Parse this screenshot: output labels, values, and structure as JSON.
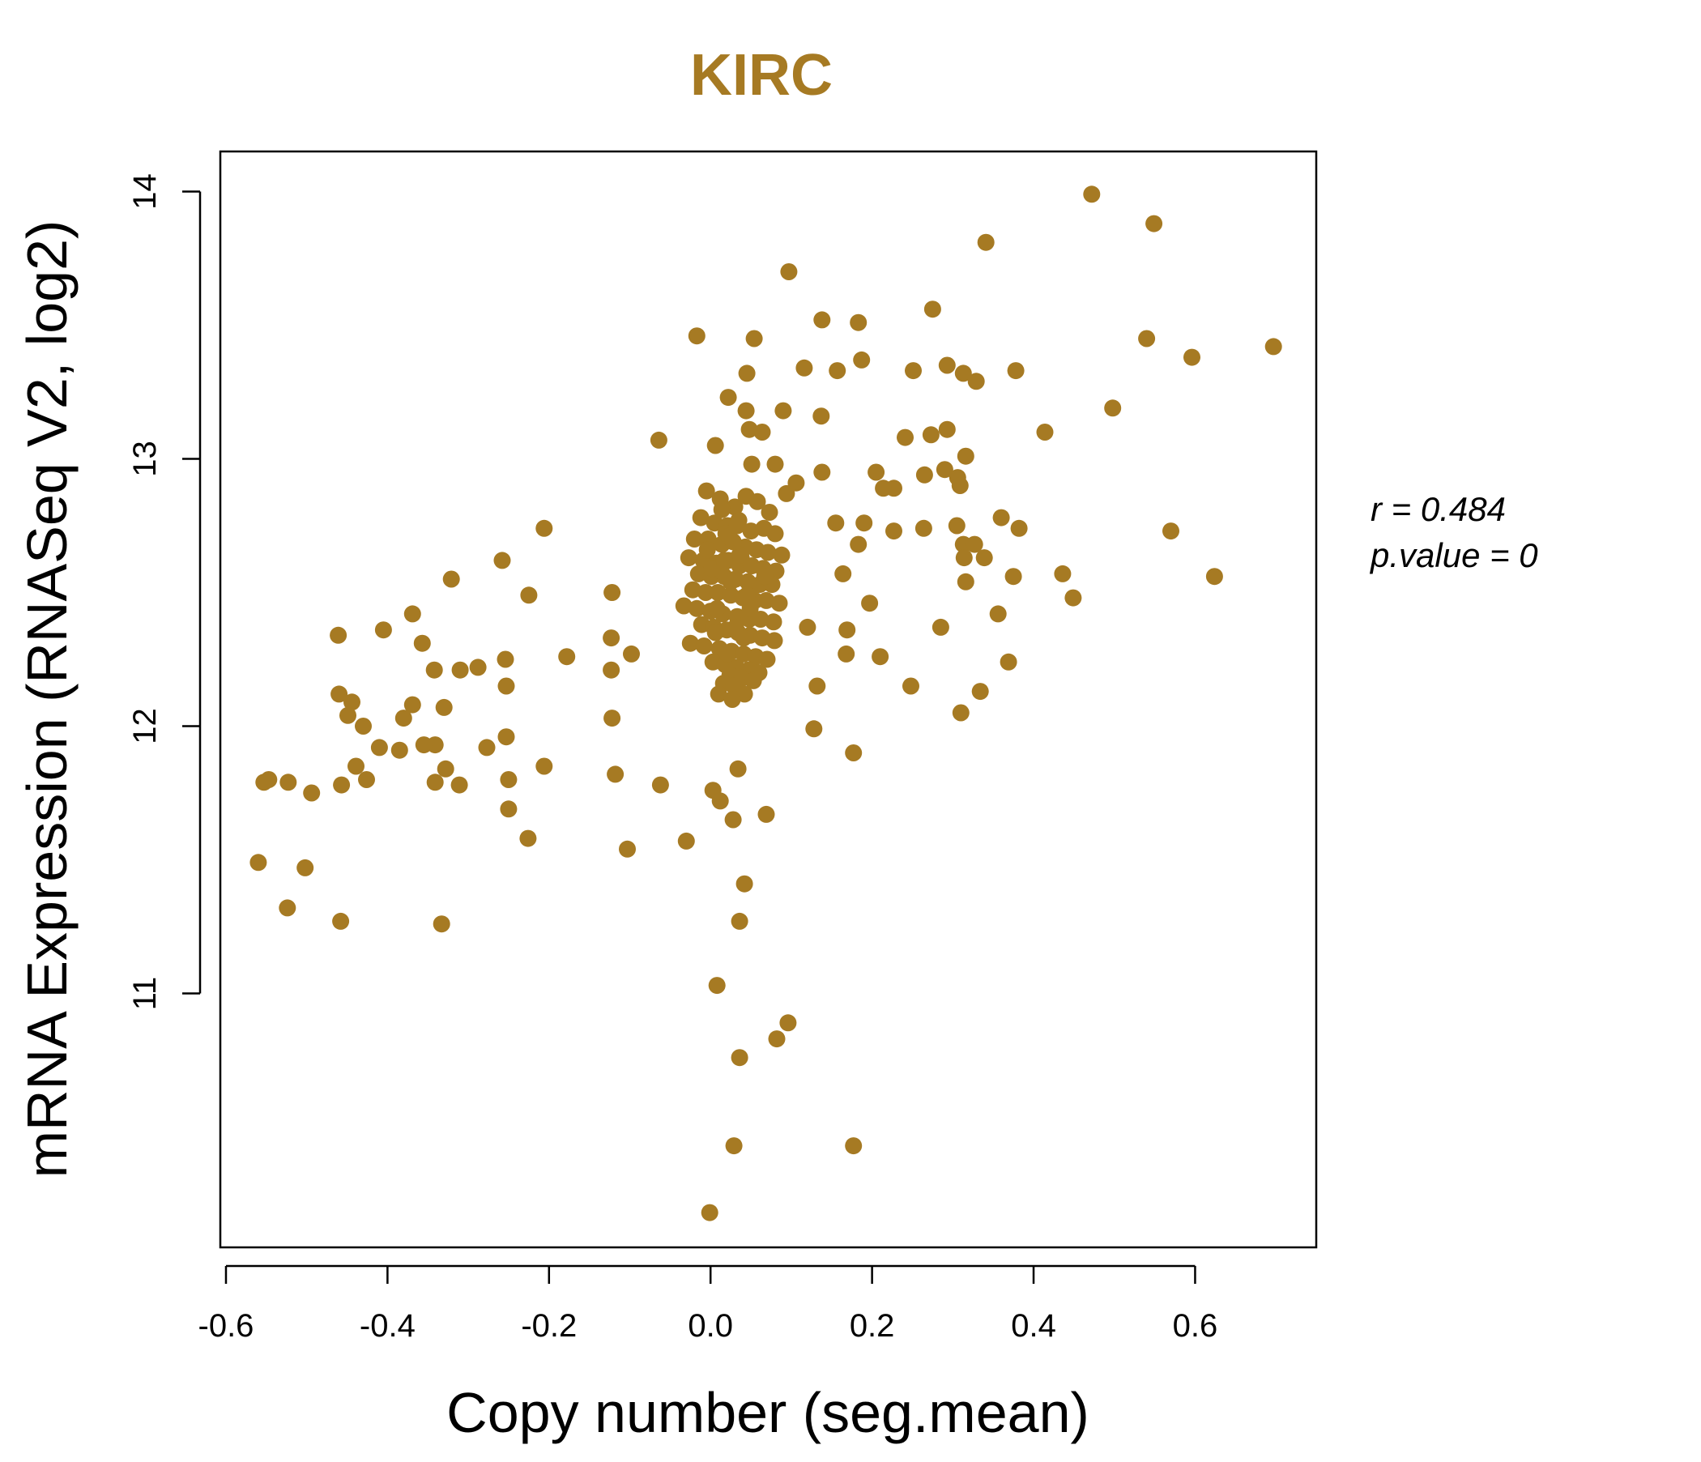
{
  "chart_data": {
    "type": "scatter",
    "title": "KIRC",
    "xlabel": "Copy number (seg.mean)",
    "ylabel": "mRNA Expression (RNASeq V2, log2)",
    "xlim": [
      -0.607,
      0.75
    ],
    "ylim": [
      10.05,
      14.15
    ],
    "x_ticks": [
      -0.6,
      -0.4,
      -0.2,
      0.0,
      0.2,
      0.4,
      0.6
    ],
    "x_tick_labels": [
      "-0.6",
      "-0.4",
      "-0.2",
      "0.0",
      "0.2",
      "0.4",
      "0.6"
    ],
    "y_ticks": [
      11,
      12,
      13,
      14
    ],
    "y_tick_labels": [
      "11",
      "12",
      "13",
      "14"
    ],
    "color": "#A67A23",
    "grid": false,
    "annotations": {
      "r_label": "r = 0.484",
      "p_label": "p.value = 0"
    },
    "series": [
      {
        "x": [
          0.472,
          0.549,
          0.341,
          0.097,
          0.275,
          0.138,
          0.183,
          -0.017,
          0.054,
          0.54,
          0.697,
          0.596,
          0.187,
          0.116,
          0.157,
          0.251,
          0.293,
          0.378,
          0.313,
          0.329,
          0.045,
          0.022,
          0.498,
          0.044,
          0.09,
          0.137,
          0.048,
          0.064,
          0.293,
          0.273,
          0.414,
          -0.064,
          0.241,
          0.006,
          0.051,
          0.316,
          0.29,
          0.138,
          0.08,
          0.205,
          0.306,
          0.227,
          0.106,
          0.094,
          0.265,
          0.214,
          0.309,
          0.36,
          0.57,
          0.305,
          0.382,
          0.264,
          -0.206,
          0.227,
          0.19,
          0.155,
          0.183,
          0.313,
          0.327,
          0.314,
          0.624,
          0.339,
          0.375,
          0.436,
          0.164,
          -0.258,
          -0.321,
          -0.122,
          0.316,
          -0.225,
          0.449,
          0.197,
          -0.369,
          0.12,
          0.356,
          -0.461,
          -0.405,
          0.169,
          0.285,
          -0.123,
          -0.357,
          -0.098,
          -0.178,
          0.369,
          0.21,
          -0.254,
          -0.342,
          -0.31,
          -0.288,
          -0.123,
          0.168,
          0.132,
          0.248,
          0.334,
          -0.46,
          -0.253,
          -0.444,
          -0.369,
          -0.38,
          -0.33,
          -0.43,
          -0.449,
          0.31,
          -0.253,
          -0.385,
          -0.341,
          0.128,
          -0.122,
          -0.277,
          -0.41,
          -0.206,
          -0.355,
          0.177,
          0.034,
          -0.439,
          -0.328,
          -0.547,
          -0.523,
          -0.553,
          -0.457,
          -0.118,
          -0.426,
          -0.311,
          -0.25,
          -0.494,
          -0.062,
          -0.341,
          -0.25,
          -0.226,
          -0.103,
          -0.56,
          -0.502,
          -0.524,
          -0.458,
          -0.333,
          0.042,
          0.036,
          0.008,
          0.096,
          0.082,
          0.036,
          0.029,
          0.177,
          -0.001,
          0.028,
          0.069,
          0.003,
          -0.03,
          0.012
        ],
        "y": [
          13.99,
          13.88,
          13.81,
          13.7,
          13.56,
          13.52,
          13.51,
          13.46,
          13.45,
          13.45,
          13.42,
          13.38,
          13.37,
          13.34,
          13.33,
          13.33,
          13.35,
          13.33,
          13.32,
          13.29,
          13.32,
          13.23,
          13.19,
          13.18,
          13.18,
          13.16,
          13.11,
          13.1,
          13.11,
          13.09,
          13.1,
          13.07,
          13.08,
          13.05,
          12.98,
          13.01,
          12.96,
          12.95,
          12.98,
          12.95,
          12.93,
          12.89,
          12.91,
          12.87,
          12.94,
          12.89,
          12.9,
          12.78,
          12.73,
          12.75,
          12.74,
          12.74,
          12.74,
          12.73,
          12.76,
          12.76,
          12.68,
          12.68,
          12.68,
          12.63,
          12.56,
          12.63,
          12.56,
          12.57,
          12.57,
          12.62,
          12.55,
          12.5,
          12.54,
          12.49,
          12.48,
          12.46,
          12.42,
          12.37,
          12.42,
          12.34,
          12.36,
          12.36,
          12.37,
          12.33,
          12.31,
          12.27,
          12.26,
          12.24,
          12.26,
          12.25,
          12.21,
          12.21,
          12.22,
          12.21,
          12.27,
          12.15,
          12.15,
          12.13,
          12.12,
          12.15,
          12.09,
          12.08,
          12.03,
          12.07,
          12.0,
          12.04,
          12.05,
          11.96,
          11.91,
          11.93,
          11.99,
          12.03,
          11.92,
          11.92,
          11.85,
          11.93,
          11.9,
          11.84,
          11.85,
          11.84,
          11.8,
          11.79,
          11.79,
          11.78,
          11.82,
          11.8,
          11.78,
          11.8,
          11.75,
          11.78,
          11.79,
          11.69,
          11.58,
          11.54,
          11.49,
          11.47,
          11.32,
          11.27,
          11.26,
          11.41,
          11.27,
          11.03,
          10.89,
          10.83,
          10.76,
          10.43,
          10.43,
          10.18,
          11.65,
          11.67,
          11.76,
          11.57,
          11.72
        ]
      },
      {
        "x": [
          -0.005,
          0.012,
          0.03,
          0.044,
          0.058,
          0.073,
          -0.012,
          0.005,
          0.021,
          0.035,
          0.05,
          0.066,
          0.08,
          -0.02,
          -0.003,
          0.014,
          0.028,
          0.043,
          0.057,
          0.071,
          0.088,
          -0.027,
          -0.009,
          0.007,
          0.022,
          0.036,
          0.051,
          0.065,
          0.081,
          -0.015,
          0.001,
          0.017,
          0.031,
          0.046,
          0.061,
          0.076,
          -0.022,
          -0.006,
          0.009,
          0.025,
          0.04,
          0.055,
          0.069,
          0.085,
          -0.033,
          -0.017,
          0.0,
          0.015,
          0.033,
          0.048,
          0.062,
          0.078,
          -0.011,
          0.004,
          0.02,
          0.034,
          0.049,
          0.064,
          0.079,
          -0.025,
          -0.008,
          0.011,
          0.026,
          0.041,
          0.056,
          0.07,
          0.003,
          0.018,
          0.032,
          0.047,
          0.06,
          0.024,
          0.039,
          0.053,
          0.016,
          0.029,
          0.01,
          0.042,
          0.027,
          0.019,
          -0.004,
          0.013,
          0.038,
          0.052,
          0.067,
          0.008,
          0.023,
          0.045,
          0.031,
          0.014,
          0.036,
          0.025,
          0.006,
          0.049,
          0.021,
          0.033,
          0.002,
          0.017,
          0.041,
          0.028
        ],
        "y": [
          12.88,
          12.85,
          12.82,
          12.86,
          12.84,
          12.8,
          12.78,
          12.76,
          12.75,
          12.77,
          12.73,
          12.74,
          12.72,
          12.7,
          12.7,
          12.68,
          12.69,
          12.67,
          12.66,
          12.65,
          12.64,
          12.63,
          12.62,
          12.61,
          12.62,
          12.6,
          12.6,
          12.59,
          12.58,
          12.57,
          12.56,
          12.56,
          12.55,
          12.54,
          12.53,
          12.53,
          12.51,
          12.5,
          12.5,
          12.49,
          12.48,
          12.47,
          12.47,
          12.46,
          12.45,
          12.44,
          12.43,
          12.42,
          12.41,
          12.4,
          12.4,
          12.39,
          12.38,
          12.37,
          12.36,
          12.35,
          12.34,
          12.33,
          12.32,
          12.31,
          12.3,
          12.29,
          12.28,
          12.27,
          12.26,
          12.25,
          12.24,
          12.23,
          12.22,
          12.21,
          12.2,
          12.19,
          12.18,
          12.17,
          12.16,
          12.15,
          12.12,
          12.12,
          12.1,
          12.72,
          12.66,
          12.58,
          12.63,
          12.52,
          12.56,
          12.44,
          12.71,
          12.49,
          12.37,
          12.81,
          12.64,
          12.54,
          12.35,
          12.44,
          12.27,
          12.75,
          12.59,
          12.62,
          12.33,
          12.69
        ]
      }
    ]
  }
}
